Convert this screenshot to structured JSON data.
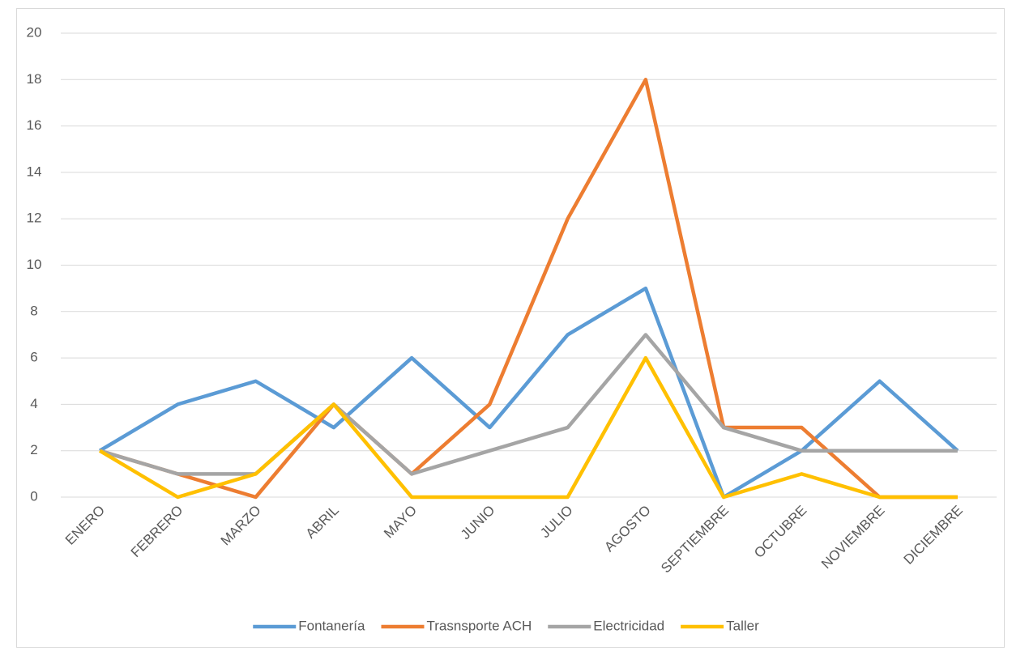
{
  "chart_data": {
    "type": "line",
    "categories": [
      "ENERO",
      "FEBRERO",
      "MARZO",
      "ABRIL",
      "MAYO",
      "JUNIO",
      "JULIO",
      "AGOSTO",
      "SEPTIEMBRE",
      "OCTUBRE",
      "NOVIEMBRE",
      "DICIEMBRE"
    ],
    "series": [
      {
        "name": "Fontanería",
        "color": "#5b9bd5",
        "values": [
          2,
          4,
          5,
          3,
          6,
          3,
          7,
          9,
          0,
          2,
          5,
          2
        ]
      },
      {
        "name": "Trasnsporte ACH",
        "color": "#ed7d31",
        "values": [
          2,
          1,
          0,
          4,
          1,
          4,
          12,
          18,
          3,
          3,
          0,
          0
        ]
      },
      {
        "name": "Electricidad",
        "color": "#a5a5a5",
        "values": [
          2,
          1,
          1,
          4,
          1,
          2,
          3,
          7,
          3,
          2,
          2,
          2
        ]
      },
      {
        "name": "Taller",
        "color": "#ffc000",
        "values": [
          2,
          0,
          1,
          4,
          0,
          0,
          0,
          6,
          0,
          1,
          0,
          0
        ]
      }
    ],
    "ylim": [
      0,
      20
    ],
    "yticks": [
      0,
      2,
      4,
      6,
      8,
      10,
      12,
      14,
      16,
      18,
      20
    ],
    "grid": true,
    "legend": "bottom"
  }
}
